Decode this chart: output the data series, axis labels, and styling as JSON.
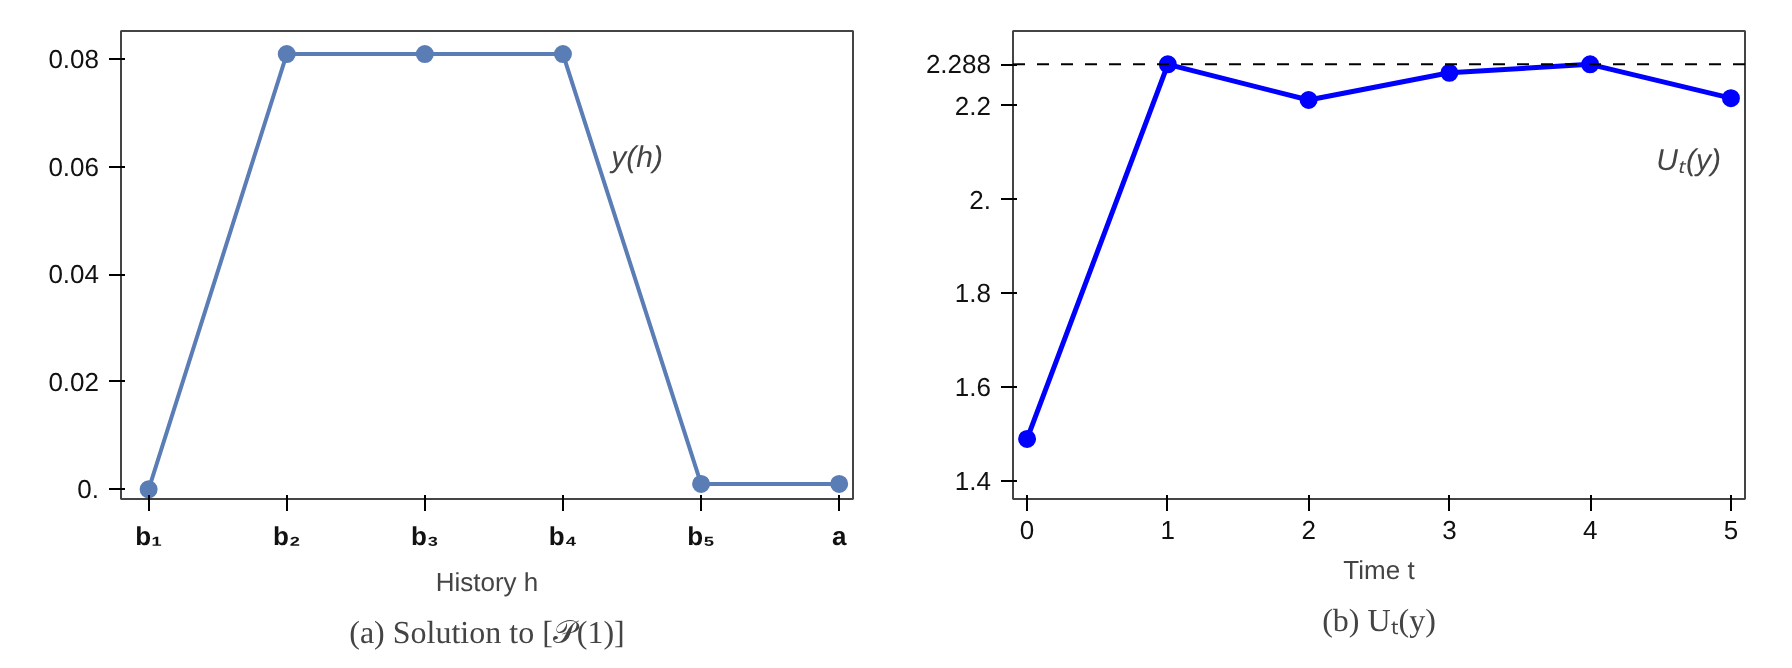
{
  "chart_data": [
    {
      "type": "line",
      "title": "(a) Solution to [𝒫(1)]",
      "xlabel": "History h",
      "categories": [
        "b₁",
        "b₂",
        "b₃",
        "b₄",
        "b₅",
        "a"
      ],
      "series": [
        {
          "name": "y(h)",
          "color": "#5b7db5",
          "values": [
            0,
            0.081,
            0.081,
            0.081,
            0.001,
            0.001
          ]
        }
      ],
      "ylim": [
        -0.0018,
        0.0853
      ],
      "yticks": [
        {
          "value": 0,
          "label": "0."
        },
        0.02,
        0.04,
        0.06,
        0.08
      ],
      "grid": false,
      "marker": "circle",
      "line_style": "solid"
    },
    {
      "type": "line",
      "title": "(b) Uₜ(y)",
      "xlabel": "Time t",
      "x": [
        0,
        1,
        2,
        3,
        4,
        5
      ],
      "series": [
        {
          "name": "Uₜ(y)",
          "color": "#0000ff",
          "values": [
            1.49,
            2.288,
            2.212,
            2.27,
            2.288,
            2.216
          ]
        }
      ],
      "xlim": [
        -0.1,
        5.1
      ],
      "xticks": [
        0,
        1,
        2,
        3,
        4,
        5
      ],
      "ylim": [
        1.362,
        2.359
      ],
      "yticks": [
        1.4,
        1.6,
        1.8,
        {
          "value": 2,
          "label": "2."
        },
        2.2,
        2.288
      ],
      "ref_lines": [
        {
          "axis": "y",
          "value": 2.288,
          "color": "#000000",
          "line_style": "dashed"
        }
      ],
      "grid": false,
      "marker": "circle",
      "line_style": "solid"
    }
  ]
}
